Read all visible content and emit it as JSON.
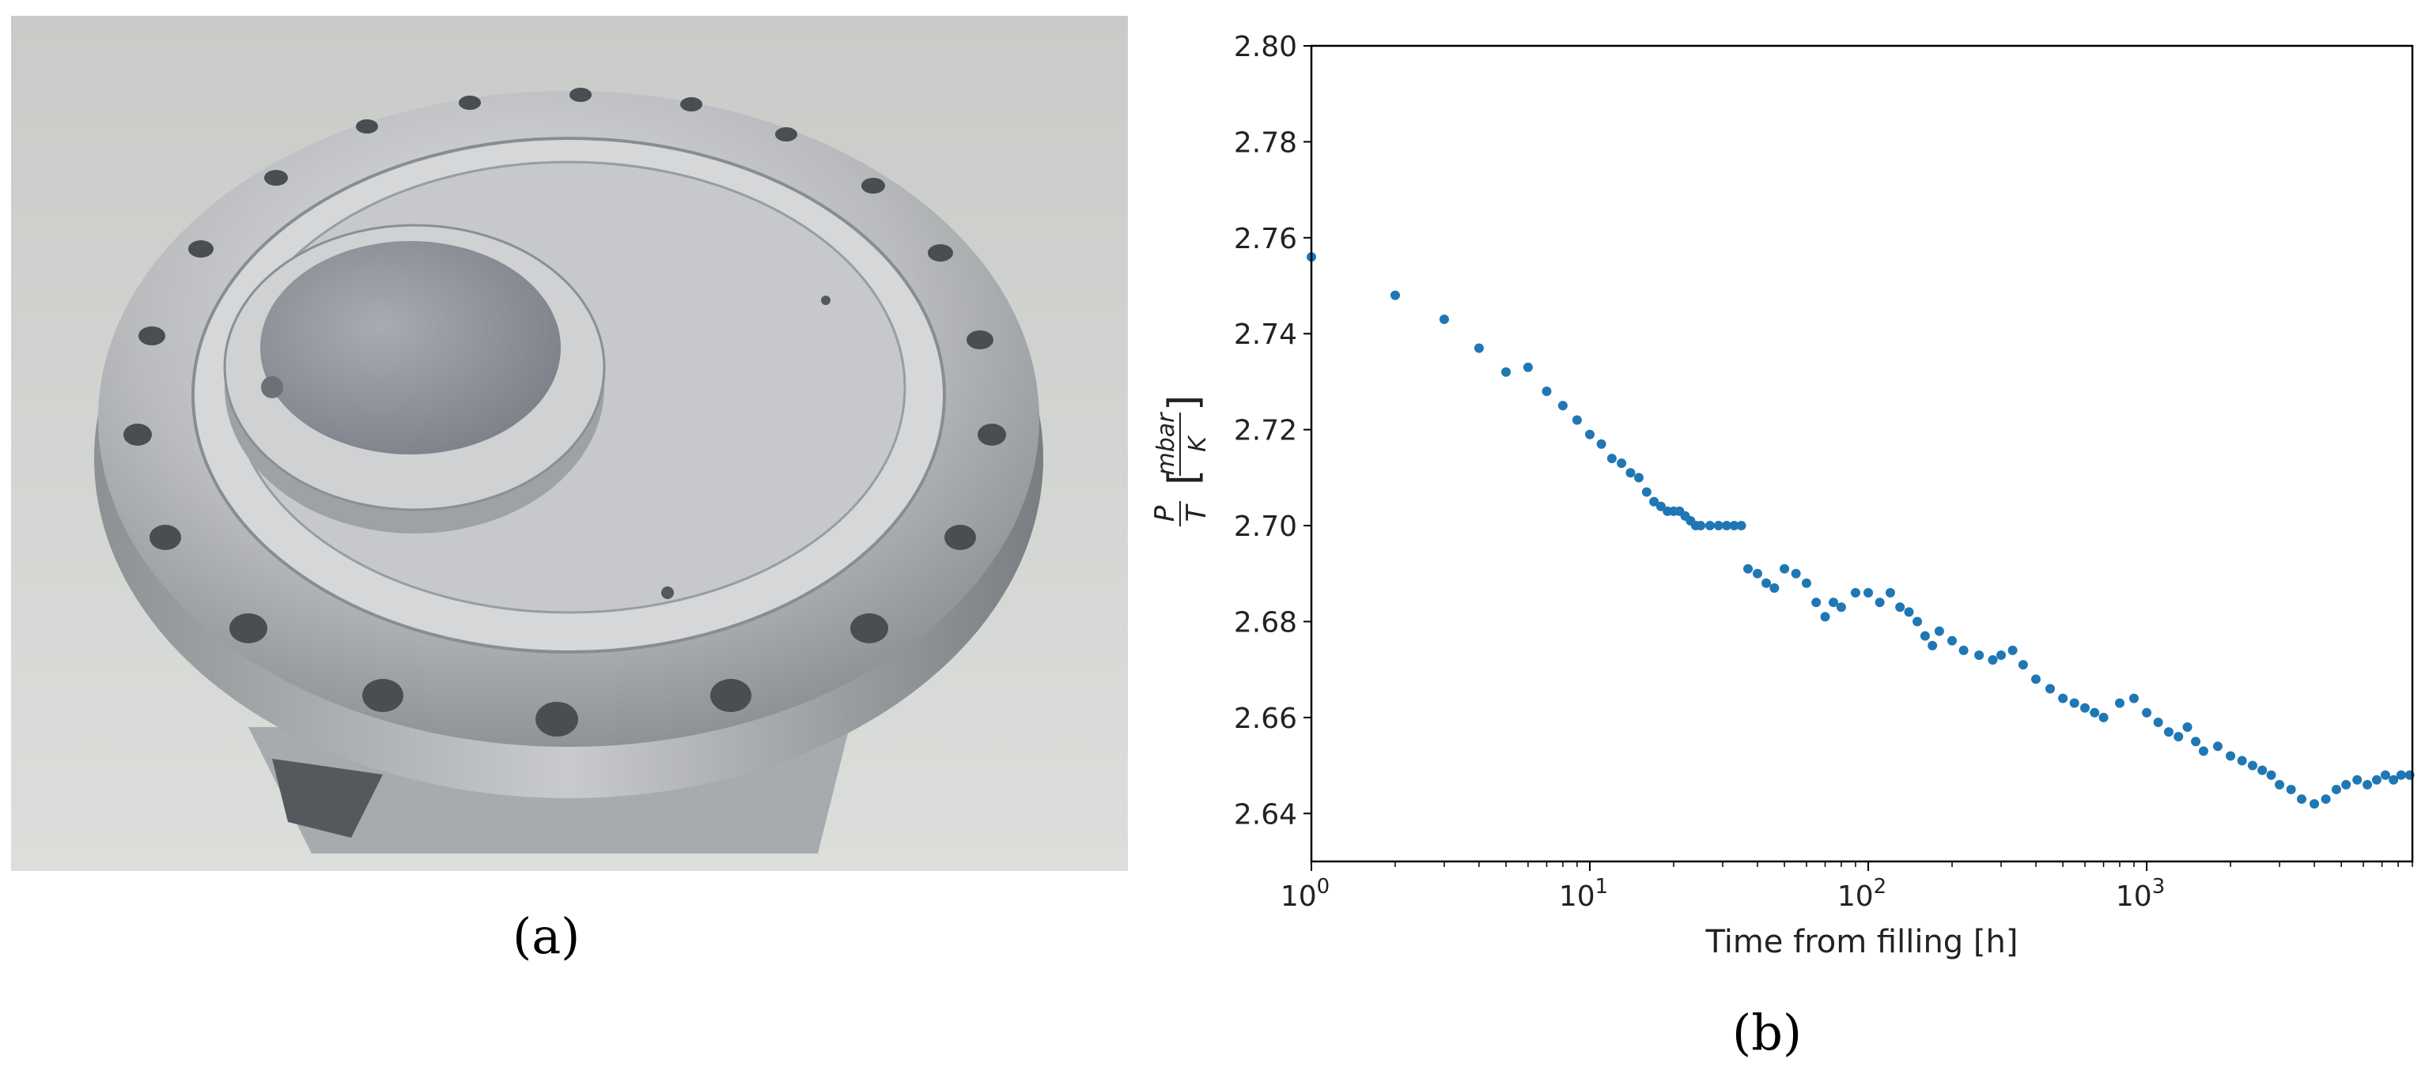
{
  "figure": {
    "panel_a_label": "(a)",
    "panel_b_label": "(b)",
    "photo_subject": "steel-flange-icon"
  },
  "chart_data": {
    "type": "scatter",
    "title": "",
    "xlabel": "Time from filling [h]",
    "ylabel": "P/T [mbar/K]",
    "ylabel_parts": {
      "num": "P",
      "den": "T",
      "unit_num": "mbar",
      "unit_den": "K"
    },
    "xscale": "log",
    "xlim": [
      1,
      9000
    ],
    "ylim": [
      2.63,
      2.8
    ],
    "xticks": [
      {
        "value": 1,
        "mantissa": "10",
        "exp": "0"
      },
      {
        "value": 10,
        "mantissa": "10",
        "exp": "1"
      },
      {
        "value": 100,
        "mantissa": "10",
        "exp": "2"
      },
      {
        "value": 1000,
        "mantissa": "10",
        "exp": "3"
      }
    ],
    "yticks": [
      "2.64",
      "2.66",
      "2.68",
      "2.70",
      "2.72",
      "2.74",
      "2.76",
      "2.78",
      "2.80"
    ],
    "grid": false,
    "legend": "none",
    "color": "#1f77b4",
    "series": [
      {
        "points": [
          [
            1,
            2.756
          ],
          [
            2,
            2.748
          ],
          [
            3,
            2.743
          ],
          [
            4,
            2.737
          ],
          [
            5,
            2.732
          ],
          [
            6,
            2.733
          ],
          [
            7,
            2.728
          ],
          [
            8,
            2.725
          ],
          [
            9,
            2.722
          ],
          [
            10,
            2.719
          ],
          [
            11,
            2.717
          ],
          [
            12,
            2.714
          ],
          [
            13,
            2.713
          ],
          [
            14,
            2.711
          ],
          [
            15,
            2.71
          ],
          [
            16,
            2.707
          ],
          [
            17,
            2.705
          ],
          [
            18,
            2.704
          ],
          [
            19,
            2.703
          ],
          [
            20,
            2.703
          ],
          [
            21,
            2.703
          ],
          [
            22,
            2.702
          ],
          [
            23,
            2.701
          ],
          [
            24,
            2.7
          ],
          [
            25,
            2.7
          ],
          [
            27,
            2.7
          ],
          [
            29,
            2.7
          ],
          [
            31,
            2.7
          ],
          [
            33,
            2.7
          ],
          [
            35,
            2.7
          ],
          [
            37,
            2.691
          ],
          [
            40,
            2.69
          ],
          [
            43,
            2.688
          ],
          [
            46,
            2.687
          ],
          [
            50,
            2.691
          ],
          [
            55,
            2.69
          ],
          [
            60,
            2.688
          ],
          [
            65,
            2.684
          ],
          [
            70,
            2.681
          ],
          [
            75,
            2.684
          ],
          [
            80,
            2.683
          ],
          [
            90,
            2.686
          ],
          [
            100,
            2.686
          ],
          [
            110,
            2.684
          ],
          [
            120,
            2.686
          ],
          [
            130,
            2.683
          ],
          [
            140,
            2.682
          ],
          [
            150,
            2.68
          ],
          [
            160,
            2.677
          ],
          [
            170,
            2.675
          ],
          [
            180,
            2.678
          ],
          [
            200,
            2.676
          ],
          [
            220,
            2.674
          ],
          [
            250,
            2.673
          ],
          [
            280,
            2.672
          ],
          [
            300,
            2.673
          ],
          [
            330,
            2.674
          ],
          [
            360,
            2.671
          ],
          [
            400,
            2.668
          ],
          [
            450,
            2.666
          ],
          [
            500,
            2.664
          ],
          [
            550,
            2.663
          ],
          [
            600,
            2.662
          ],
          [
            650,
            2.661
          ],
          [
            700,
            2.66
          ],
          [
            800,
            2.663
          ],
          [
            900,
            2.664
          ],
          [
            1000,
            2.661
          ],
          [
            1100,
            2.659
          ],
          [
            1200,
            2.657
          ],
          [
            1300,
            2.656
          ],
          [
            1400,
            2.658
          ],
          [
            1500,
            2.655
          ],
          [
            1600,
            2.653
          ],
          [
            1800,
            2.654
          ],
          [
            2000,
            2.652
          ],
          [
            2200,
            2.651
          ],
          [
            2400,
            2.65
          ],
          [
            2600,
            2.649
          ],
          [
            2800,
            2.648
          ],
          [
            3000,
            2.646
          ],
          [
            3300,
            2.645
          ],
          [
            3600,
            2.643
          ],
          [
            4000,
            2.642
          ],
          [
            4400,
            2.643
          ],
          [
            4800,
            2.645
          ],
          [
            5200,
            2.646
          ],
          [
            5700,
            2.647
          ],
          [
            6200,
            2.646
          ],
          [
            6700,
            2.647
          ],
          [
            7200,
            2.648
          ],
          [
            7700,
            2.647
          ],
          [
            8200,
            2.648
          ],
          [
            8800,
            2.648
          ]
        ]
      }
    ]
  }
}
